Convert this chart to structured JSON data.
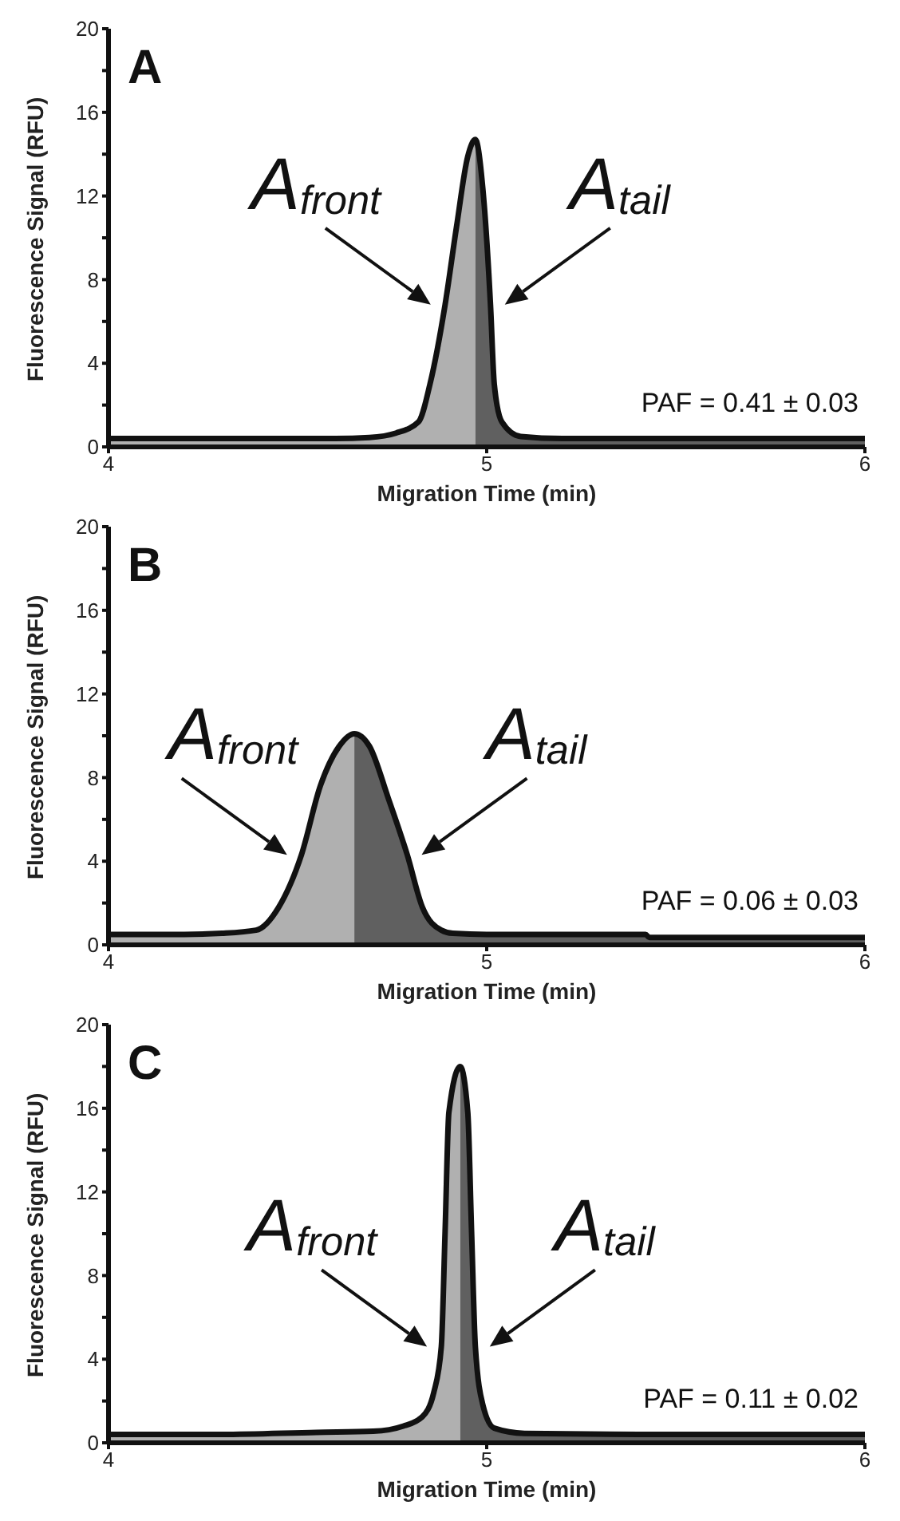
{
  "chart_data": [
    {
      "type": "line",
      "title": "A",
      "xlabel": "Migration Time (min)",
      "ylabel": "Fluorescence Signal (RFU)",
      "xlim": [
        4,
        6
      ],
      "xticks": [
        4,
        5,
        6
      ],
      "ylim": [
        0,
        20
      ],
      "yticks": [
        0,
        {
          "value": 2,
          "label": null
        },
        4,
        {
          "value": 6,
          "label": null
        },
        8,
        {
          "value": 10,
          "label": null
        },
        12,
        {
          "value": 14,
          "label": null
        },
        16,
        {
          "value": 18,
          "label": null
        },
        20
      ],
      "series": [
        {
          "type": "area",
          "color": "#b0b0b0",
          "x": [
            4.0,
            4.3,
            4.5,
            4.6,
            4.69,
            4.76,
            4.82,
            4.85,
            4.89,
            4.92,
            4.95,
            4.97
          ],
          "values": [
            0.4,
            0.4,
            0.4,
            0.4,
            0.45,
            0.66,
            1.2,
            3.0,
            6.8,
            10.5,
            13.9,
            14.7
          ]
        },
        {
          "type": "area",
          "color": "#606060",
          "x": [
            4.97,
            4.99,
            5.01,
            5.02,
            5.04,
            5.09,
            5.2,
            5.5,
            6.0
          ],
          "values": [
            14.7,
            12.3,
            6.8,
            3.0,
            1.2,
            0.5,
            0.4,
            0.4,
            0.4
          ]
        },
        {
          "type": "line",
          "color": "#111111",
          "x": [
            4.0,
            4.3,
            4.5,
            4.6,
            4.69,
            4.76,
            4.82,
            4.85,
            4.89,
            4.92,
            4.95,
            4.97,
            4.99,
            5.01,
            5.02,
            5.04,
            5.09,
            5.2,
            5.5,
            6.0
          ],
          "values": [
            0.4,
            0.4,
            0.4,
            0.4,
            0.45,
            0.66,
            1.2,
            3.0,
            6.8,
            10.5,
            13.9,
            14.7,
            12.3,
            6.8,
            3.0,
            1.2,
            0.5,
            0.4,
            0.4,
            0.4
          ]
        }
      ],
      "annotations": [
        {
          "text": "A$_{front}$",
          "x": 4.89,
          "y": 6.8
        },
        {
          "text": "A$_{tail}$",
          "x": 5.01,
          "y": 6.8
        },
        "PAF = 0.41 ± 0.03"
      ]
    },
    {
      "type": "line",
      "title": "B",
      "xlabel": "Migration Time (min)",
      "ylabel": "Fluorescence Signal (RFU)",
      "xlim": [
        4,
        6
      ],
      "xticks": [
        4,
        5,
        6
      ],
      "ylim": [
        0,
        20
      ],
      "yticks": [
        0,
        {
          "value": 2,
          "label": null
        },
        4,
        {
          "value": 6,
          "label": null
        },
        8,
        {
          "value": 10,
          "label": null
        },
        12,
        {
          "value": 14,
          "label": null
        },
        16,
        {
          "value": 18,
          "label": null
        },
        20
      ],
      "series": [
        {
          "type": "area",
          "color": "#b0b0b0",
          "x": [
            4.0,
            4.2,
            4.3,
            4.39,
            4.45,
            4.51,
            4.56,
            4.61,
            4.65
          ],
          "values": [
            0.5,
            0.5,
            0.55,
            0.7,
            1.8,
            4.3,
            7.6,
            9.5,
            10.1
          ]
        },
        {
          "type": "area",
          "color": "#606060",
          "x": [
            4.65,
            4.69,
            4.74,
            4.79,
            4.83,
            4.88,
            4.91,
            5.0,
            5.2,
            5.42,
            5.43,
            5.7,
            6.0
          ],
          "values": [
            10.1,
            9.5,
            7.0,
            4.3,
            1.8,
            0.7,
            0.55,
            0.5,
            0.5,
            0.5,
            0.35,
            0.35,
            0.35
          ]
        },
        {
          "type": "line",
          "color": "#111111",
          "x": [
            4.0,
            4.2,
            4.3,
            4.39,
            4.45,
            4.51,
            4.56,
            4.61,
            4.65,
            4.69,
            4.74,
            4.79,
            4.83,
            4.88,
            4.91,
            5.0,
            5.2,
            5.42,
            5.43,
            5.7,
            6.0
          ],
          "values": [
            0.5,
            0.5,
            0.55,
            0.7,
            1.8,
            4.3,
            7.6,
            9.5,
            10.1,
            9.5,
            7.0,
            4.3,
            1.8,
            0.7,
            0.55,
            0.5,
            0.5,
            0.5,
            0.35,
            0.35,
            0.35
          ]
        }
      ],
      "annotations": [
        {
          "text": "A$_{front}$",
          "x": 4.51,
          "y": 4.3
        },
        {
          "text": "A$_{tail}$",
          "x": 4.79,
          "y": 4.3
        },
        "PAF = 0.06 ± 0.03"
      ]
    },
    {
      "type": "line",
      "title": "C",
      "xlabel": "Migration Time (min)",
      "ylabel": "Fluorescence Signal (RFU)",
      "xlim": [
        4,
        6
      ],
      "xticks": [
        4,
        5,
        6
      ],
      "ylim": [
        0,
        20
      ],
      "yticks": [
        0,
        {
          "value": 2,
          "label": null
        },
        4,
        {
          "value": 6,
          "label": null
        },
        8,
        {
          "value": 10,
          "label": null
        },
        12,
        {
          "value": 14,
          "label": null
        },
        16,
        {
          "value": 18,
          "label": null
        },
        20
      ],
      "series": [
        {
          "type": "area",
          "color": "#b0b0b0",
          "x": [
            4.0,
            4.3,
            4.55,
            4.7,
            4.78,
            4.83,
            4.86,
            4.88,
            4.89,
            4.9,
            4.93
          ],
          "values": [
            0.4,
            0.4,
            0.5,
            0.55,
            0.8,
            1.25,
            2.4,
            4.6,
            10.1,
            15.8,
            18.0
          ]
        },
        {
          "type": "area",
          "color": "#606060",
          "x": [
            4.93,
            4.95,
            4.96,
            4.97,
            4.99,
            5.02,
            5.1,
            5.4,
            6.0
          ],
          "values": [
            18.0,
            15.8,
            10.1,
            4.6,
            1.8,
            0.7,
            0.45,
            0.4,
            0.4
          ]
        },
        {
          "type": "line",
          "color": "#111111",
          "x": [
            4.0,
            4.3,
            4.55,
            4.7,
            4.78,
            4.83,
            4.86,
            4.88,
            4.89,
            4.9,
            4.93,
            4.95,
            4.96,
            4.97,
            4.99,
            5.02,
            5.1,
            5.4,
            6.0
          ],
          "values": [
            0.4,
            0.4,
            0.5,
            0.55,
            0.8,
            1.25,
            2.4,
            4.6,
            10.1,
            15.8,
            18.0,
            15.8,
            10.1,
            4.6,
            1.8,
            0.7,
            0.45,
            0.4,
            0.4
          ]
        }
      ],
      "annotations": [
        {
          "text": "A$_{front}$",
          "x": 4.88,
          "y": 4.6
        },
        {
          "text": "A$_{tail}$",
          "x": 4.97,
          "y": 4.6
        },
        "PAF = 0.11 ± 0.02"
      ]
    }
  ]
}
